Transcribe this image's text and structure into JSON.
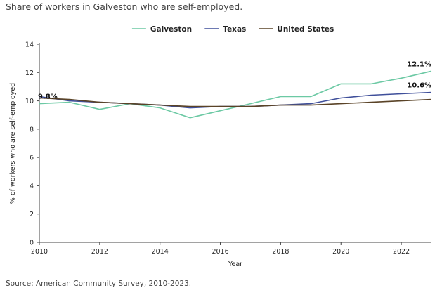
{
  "title": "Share of workers in Galveston who are self-employed.",
  "source": "Source: American Community Survey, 2010-2023.",
  "chart_data": {
    "type": "line",
    "title": "Share of workers in Galveston who are self-employed.",
    "xlabel": "Year",
    "ylabel": "% of workers who are self-employed",
    "xlim": [
      2010,
      2023
    ],
    "ylim": [
      0,
      14
    ],
    "x_ticks": [
      2010,
      2012,
      2014,
      2016,
      2018,
      2020,
      2022
    ],
    "y_ticks": [
      0,
      2,
      4,
      6,
      8,
      10,
      12,
      14
    ],
    "grid": false,
    "legend_position": "top-center",
    "x": [
      2010,
      2011,
      2012,
      2013,
      2014,
      2015,
      2016,
      2017,
      2018,
      2019,
      2020,
      2021,
      2022,
      2023
    ],
    "series": [
      {
        "name": "Galveston",
        "color": "#6cc9a4",
        "values": [
          9.8,
          9.9,
          9.4,
          9.8,
          9.5,
          8.8,
          9.3,
          9.8,
          10.3,
          10.3,
          11.2,
          11.2,
          11.6,
          12.1
        ]
      },
      {
        "name": "Texas",
        "color": "#3f4f9a",
        "values": [
          10.3,
          10.0,
          9.9,
          9.8,
          9.7,
          9.5,
          9.6,
          9.6,
          9.7,
          9.8,
          10.2,
          10.4,
          10.5,
          10.6
        ]
      },
      {
        "name": "United States",
        "color": "#5a4327",
        "values": [
          10.2,
          10.1,
          9.9,
          9.8,
          9.7,
          9.6,
          9.6,
          9.6,
          9.7,
          9.7,
          9.8,
          9.9,
          10.0,
          10.1
        ]
      }
    ],
    "annotations": [
      {
        "text": "9.8%",
        "x": 2010,
        "y": 9.8,
        "series": "Galveston"
      },
      {
        "text": "12.1%",
        "x": 2023,
        "y": 12.1,
        "series": "Galveston"
      },
      {
        "text": "10.6%",
        "x": 2023,
        "y": 10.6,
        "series": "Texas"
      }
    ]
  }
}
